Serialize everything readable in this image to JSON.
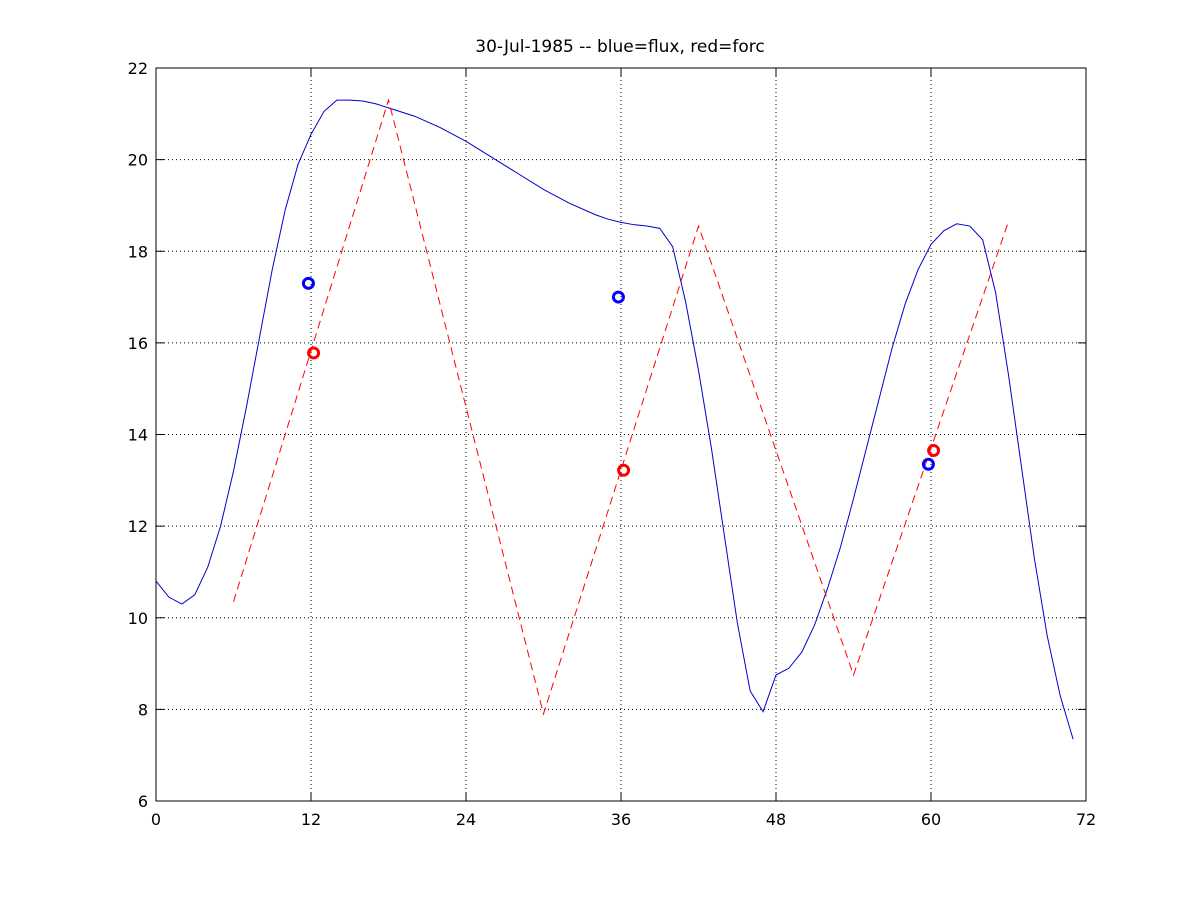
{
  "chart_data": {
    "type": "line",
    "title": "30-Jul-1985 -- blue=flux, red=forc",
    "xlabel": "",
    "ylabel": "",
    "xlim": [
      0,
      72
    ],
    "ylim": [
      6,
      22
    ],
    "xticks": [
      0,
      12,
      24,
      36,
      48,
      60,
      72
    ],
    "yticks": [
      6,
      8,
      10,
      12,
      14,
      16,
      18,
      20,
      22
    ],
    "grid": true,
    "series": [
      {
        "color": "#0000cc",
        "style": "solid",
        "points": [
          [
            0,
            10.8
          ],
          [
            1,
            10.45
          ],
          [
            2,
            10.3
          ],
          [
            3,
            10.5
          ],
          [
            4,
            11.1
          ],
          [
            5,
            12.0
          ],
          [
            6,
            13.2
          ],
          [
            7,
            14.6
          ],
          [
            8,
            16.1
          ],
          [
            9,
            17.6
          ],
          [
            10,
            18.9
          ],
          [
            11,
            19.9
          ],
          [
            12,
            20.55
          ],
          [
            13,
            21.05
          ],
          [
            14,
            21.3
          ],
          [
            15,
            21.3
          ],
          [
            16,
            21.28
          ],
          [
            17,
            21.22
          ],
          [
            18,
            21.13
          ],
          [
            20,
            20.95
          ],
          [
            22,
            20.7
          ],
          [
            24,
            20.4
          ],
          [
            26,
            20.05
          ],
          [
            28,
            19.7
          ],
          [
            30,
            19.35
          ],
          [
            32,
            19.05
          ],
          [
            34,
            18.8
          ],
          [
            35,
            18.7
          ],
          [
            36,
            18.63
          ],
          [
            37,
            18.58
          ],
          [
            38,
            18.55
          ],
          [
            39,
            18.5
          ],
          [
            40,
            18.1
          ],
          [
            41,
            16.9
          ],
          [
            42,
            15.4
          ],
          [
            43,
            13.7
          ],
          [
            44,
            11.8
          ],
          [
            45,
            9.9
          ],
          [
            46,
            8.4
          ],
          [
            47,
            7.95
          ],
          [
            48,
            8.75
          ],
          [
            49,
            8.9
          ],
          [
            50,
            9.25
          ],
          [
            51,
            9.85
          ],
          [
            52,
            10.65
          ],
          [
            53,
            11.55
          ],
          [
            54,
            12.6
          ],
          [
            55,
            13.7
          ],
          [
            56,
            14.8
          ],
          [
            57,
            15.9
          ],
          [
            58,
            16.85
          ],
          [
            59,
            17.6
          ],
          [
            60,
            18.15
          ],
          [
            61,
            18.45
          ],
          [
            62,
            18.6
          ],
          [
            63,
            18.55
          ],
          [
            64,
            18.25
          ],
          [
            65,
            17.1
          ],
          [
            66,
            15.3
          ],
          [
            67,
            13.3
          ],
          [
            68,
            11.3
          ],
          [
            69,
            9.6
          ],
          [
            70,
            8.3
          ],
          [
            71,
            7.35
          ]
        ]
      },
      {
        "color": "#ff0000",
        "style": "dashed",
        "points": [
          [
            6,
            10.35
          ],
          [
            18,
            21.3
          ],
          [
            30,
            7.9
          ],
          [
            42,
            18.55
          ],
          [
            54,
            8.75
          ],
          [
            66,
            18.65
          ]
        ]
      }
    ],
    "markers": [
      {
        "x": 11.8,
        "y": 17.3,
        "color": "#0000ff"
      },
      {
        "x": 35.8,
        "y": 17.0,
        "color": "#0000ff"
      },
      {
        "x": 59.8,
        "y": 13.35,
        "color": "#0000ff"
      },
      {
        "x": 12.2,
        "y": 15.78,
        "color": "#ff0000"
      },
      {
        "x": 36.2,
        "y": 13.22,
        "color": "#ff0000"
      },
      {
        "x": 60.2,
        "y": 13.65,
        "color": "#ff0000"
      }
    ]
  }
}
